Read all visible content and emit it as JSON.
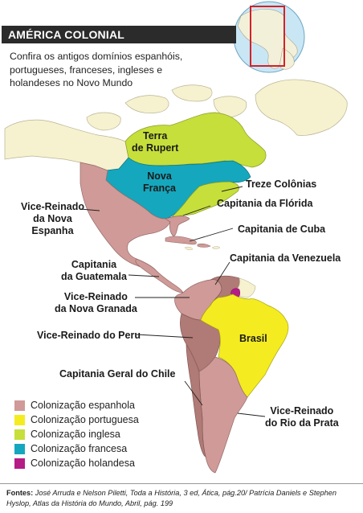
{
  "title": "AMÉRICA COLONIAL",
  "subtitle": "Confira os antigos domínios espanhóis, portugueses, franceses, ingleses e holandeses no Novo Mundo",
  "colors": {
    "espanhola": "#cf9a97",
    "portuguesa": "#f4ec20",
    "inglesa": "#c6df3a",
    "francesa": "#15a7bd",
    "holandesa": "#b51c86",
    "land_other": "#f6f1cf",
    "sea": "#ffffff",
    "dark_spanish": "#b07a76"
  },
  "labels": {
    "rupert_1": "Terra",
    "rupert_2": "de Rupert",
    "franca_1": "Nova",
    "franca_2": "França",
    "treze": "Treze Colônias",
    "florida": "Capitania da Flórida",
    "cuba": "Capitania de Cuba",
    "espanha_1": "Vice-Reinado",
    "espanha_2": "da Nova",
    "espanha_3": "Espanha",
    "guatemala_1": "Capitania",
    "guatemala_2": "da Guatemala",
    "venezuela": "Capitania da Venezuela",
    "granada_1": "Vice-Reinado",
    "granada_2": "da Nova Granada",
    "peru": "Vice-Reinado do Peru",
    "brasil": "Brasil",
    "chile": "Capitania Geral do Chile",
    "prata_1": "Vice-Reinado",
    "prata_2": "do Rio da Prata"
  },
  "legend": [
    {
      "label": "Colonização espanhola",
      "color": "#cf9a97"
    },
    {
      "label": "Colonização portuguesa",
      "color": "#f4ec20"
    },
    {
      "label": "Colonização inglesa",
      "color": "#c6df3a"
    },
    {
      "label": "Colonização francesa",
      "color": "#15a7bd"
    },
    {
      "label": "Colonização holandesa",
      "color": "#b51c86"
    }
  ],
  "sources": {
    "prefix": "Fontes:",
    "text": "José Arruda e Nelson Piletti, Toda a História, 3 ed, Ática, pág.20/ Patrícia Daniels e Stephen Hyslop, Atlas da História do Mundo, Abril, pág. 199"
  }
}
